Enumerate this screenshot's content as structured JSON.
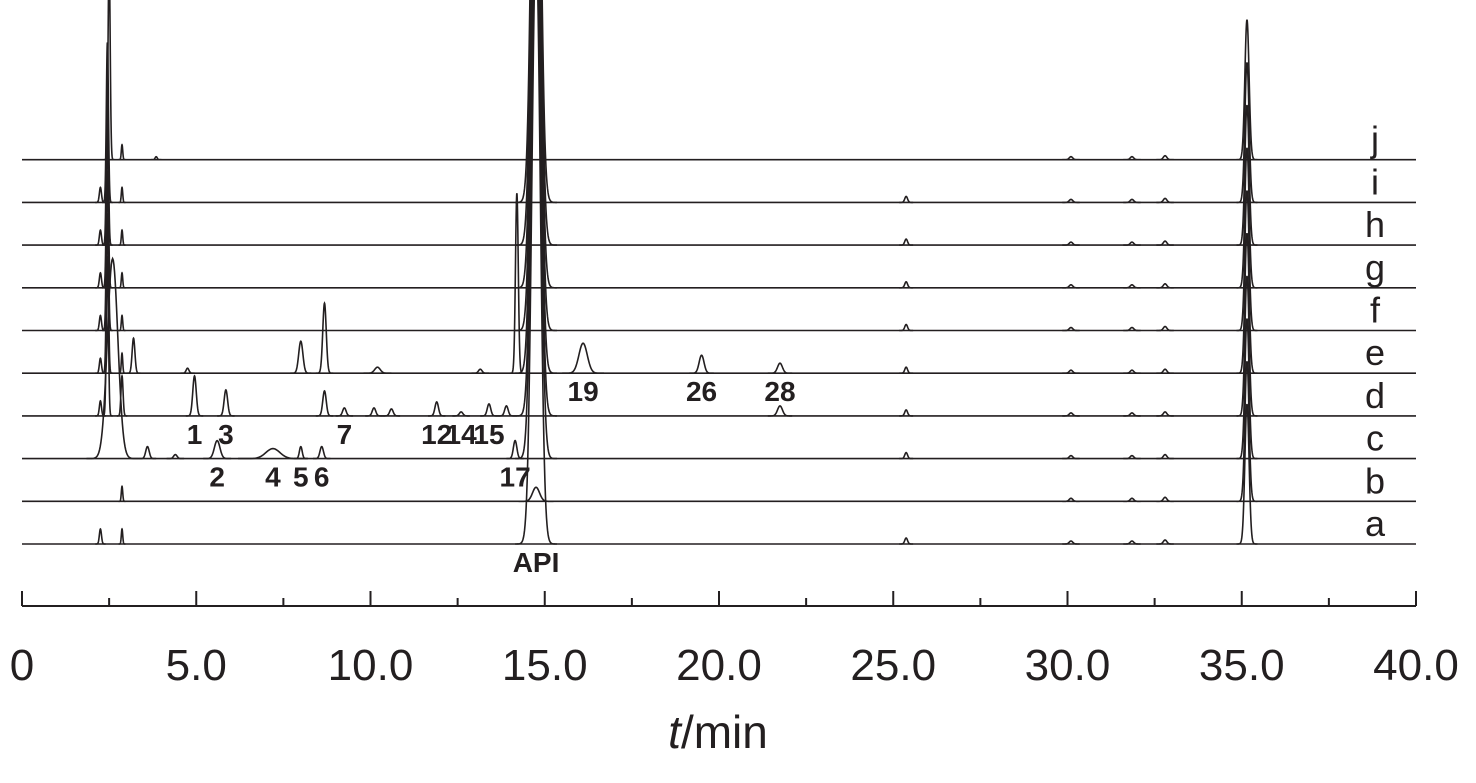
{
  "chart_data": {
    "type": "chromatogram",
    "xlabel_var": "t",
    "xlabel_unit": "/min",
    "xlim": [
      0,
      40
    ],
    "xticks": [
      0,
      {
        "value": 5,
        "label": "5.0"
      },
      {
        "value": 10,
        "label": "10.0"
      },
      {
        "value": 15,
        "label": "15.0"
      },
      {
        "value": 20,
        "label": "20.0"
      },
      {
        "value": 25,
        "label": "25.0"
      },
      {
        "value": 30,
        "label": "30.0"
      },
      {
        "value": 35,
        "label": "35.0"
      },
      {
        "value": 40,
        "label": "40.0"
      }
    ],
    "xminorticks": [
      2.5,
      7.5,
      12.5,
      17.5,
      22.5,
      27.5,
      32.5,
      37.5
    ],
    "color": "#231f20",
    "traces": [
      {
        "name": "a",
        "peaks": [
          {
            "t": 2.25,
            "h": 15,
            "w": 0.03
          },
          {
            "t": 2.87,
            "h": 15,
            "w": 0.02
          },
          {
            "t": 14.75,
            "h": 600,
            "w": 0.12,
            "label": "API"
          },
          {
            "t": 25.37,
            "h": 6,
            "w": 0.04
          },
          {
            "t": 30.1,
            "h": 3,
            "w": 0.05
          },
          {
            "t": 31.85,
            "h": 3,
            "w": 0.05
          },
          {
            "t": 32.8,
            "h": 4,
            "w": 0.05
          },
          {
            "t": 35.15,
            "h": 140,
            "w": 0.06
          }
        ]
      },
      {
        "name": "b",
        "peaks": [
          {
            "t": 2.87,
            "h": 15,
            "w": 0.02
          },
          {
            "t": 14.75,
            "h": 14,
            "w": 0.1
          },
          {
            "t": 30.1,
            "h": 3,
            "w": 0.05
          },
          {
            "t": 31.85,
            "h": 3,
            "w": 0.05
          },
          {
            "t": 32.8,
            "h": 4,
            "w": 0.05
          },
          {
            "t": 35.15,
            "h": 140,
            "w": 0.06
          }
        ]
      },
      {
        "name": "c",
        "peaks": [
          {
            "t": 2.6,
            "h": 200,
            "w": 0.15
          },
          {
            "t": 3.6,
            "h": 12,
            "w": 0.05
          },
          {
            "t": 4.4,
            "h": 4,
            "w": 0.05
          },
          {
            "t": 5.6,
            "h": 18,
            "w": 0.08,
            "label": "2"
          },
          {
            "t": 7.2,
            "h": 10,
            "w": 0.2,
            "label": "4"
          },
          {
            "t": 8.0,
            "h": 12,
            "w": 0.04,
            "label": "5"
          },
          {
            "t": 8.6,
            "h": 12,
            "w": 0.05,
            "label": "6"
          },
          {
            "t": 14.15,
            "h": 18,
            "w": 0.05,
            "label": "17"
          },
          {
            "t": 14.75,
            "h": 600,
            "w": 0.12
          },
          {
            "t": 25.37,
            "h": 6,
            "w": 0.04
          },
          {
            "t": 30.1,
            "h": 3,
            "w": 0.05
          },
          {
            "t": 31.85,
            "h": 3,
            "w": 0.05
          },
          {
            "t": 32.8,
            "h": 4,
            "w": 0.05
          },
          {
            "t": 35.15,
            "h": 140,
            "w": 0.06
          }
        ]
      },
      {
        "name": "d",
        "peaks": [
          {
            "t": 2.25,
            "h": 15,
            "w": 0.03
          },
          {
            "t": 2.45,
            "h": 160,
            "w": 0.03
          },
          {
            "t": 2.87,
            "h": 40,
            "w": 0.03
          },
          {
            "t": 4.95,
            "h": 40,
            "w": 0.05,
            "label": "1"
          },
          {
            "t": 5.85,
            "h": 26,
            "w": 0.05,
            "label": "3"
          },
          {
            "t": 8.68,
            "h": 25,
            "w": 0.05
          },
          {
            "t": 9.25,
            "h": 8,
            "w": 0.05,
            "label": "7"
          },
          {
            "t": 10.1,
            "h": 8,
            "w": 0.05
          },
          {
            "t": 10.6,
            "h": 7,
            "w": 0.05
          },
          {
            "t": 11.9,
            "h": 14,
            "w": 0.05,
            "label": "12"
          },
          {
            "t": 12.6,
            "h": 4,
            "w": 0.05,
            "label": "14"
          },
          {
            "t": 13.4,
            "h": 12,
            "w": 0.05,
            "label": "15"
          },
          {
            "t": 13.9,
            "h": 10,
            "w": 0.05
          },
          {
            "t": 14.75,
            "h": 600,
            "w": 0.12
          },
          {
            "t": 21.75,
            "h": 10,
            "w": 0.07
          },
          {
            "t": 25.37,
            "h": 6,
            "w": 0.04
          },
          {
            "t": 30.1,
            "h": 3,
            "w": 0.05
          },
          {
            "t": 31.85,
            "h": 3,
            "w": 0.05
          },
          {
            "t": 32.8,
            "h": 4,
            "w": 0.05
          },
          {
            "t": 35.15,
            "h": 140,
            "w": 0.06
          }
        ]
      },
      {
        "name": "e",
        "peaks": [
          {
            "t": 2.25,
            "h": 15,
            "w": 0.03
          },
          {
            "t": 2.45,
            "h": 160,
            "w": 0.03
          },
          {
            "t": 2.87,
            "h": 20,
            "w": 0.02
          },
          {
            "t": 3.2,
            "h": 35,
            "w": 0.04
          },
          {
            "t": 4.75,
            "h": 5,
            "w": 0.04
          },
          {
            "t": 8.0,
            "h": 32,
            "w": 0.06
          },
          {
            "t": 8.68,
            "h": 70,
            "w": 0.05
          },
          {
            "t": 10.2,
            "h": 6,
            "w": 0.08
          },
          {
            "t": 13.15,
            "h": 4,
            "w": 0.05
          },
          {
            "t": 14.2,
            "h": 180,
            "w": 0.04
          },
          {
            "t": 14.75,
            "h": 600,
            "w": 0.12
          },
          {
            "t": 16.1,
            "h": 30,
            "w": 0.12,
            "label": "19"
          },
          {
            "t": 19.5,
            "h": 18,
            "w": 0.07,
            "label": "26"
          },
          {
            "t": 21.75,
            "h": 10,
            "w": 0.07,
            "label": "28"
          },
          {
            "t": 25.37,
            "h": 6,
            "w": 0.04
          },
          {
            "t": 30.1,
            "h": 3,
            "w": 0.05
          },
          {
            "t": 31.85,
            "h": 3,
            "w": 0.05
          },
          {
            "t": 32.8,
            "h": 4,
            "w": 0.05
          },
          {
            "t": 35.15,
            "h": 140,
            "w": 0.06
          }
        ]
      },
      {
        "name": "f",
        "peaks": [
          {
            "t": 2.25,
            "h": 15,
            "w": 0.03
          },
          {
            "t": 2.45,
            "h": 160,
            "w": 0.03
          },
          {
            "t": 2.87,
            "h": 15,
            "w": 0.02
          },
          {
            "t": 14.75,
            "h": 600,
            "w": 0.12
          },
          {
            "t": 25.37,
            "h": 6,
            "w": 0.04
          },
          {
            "t": 30.1,
            "h": 3,
            "w": 0.05
          },
          {
            "t": 31.85,
            "h": 3,
            "w": 0.05
          },
          {
            "t": 32.8,
            "h": 4,
            "w": 0.05
          },
          {
            "t": 35.15,
            "h": 140,
            "w": 0.06
          }
        ]
      },
      {
        "name": "g",
        "peaks": [
          {
            "t": 2.25,
            "h": 15,
            "w": 0.03
          },
          {
            "t": 2.45,
            "h": 160,
            "w": 0.03
          },
          {
            "t": 2.87,
            "h": 15,
            "w": 0.02
          },
          {
            "t": 14.75,
            "h": 600,
            "w": 0.12
          },
          {
            "t": 25.37,
            "h": 6,
            "w": 0.04
          },
          {
            "t": 30.1,
            "h": 3,
            "w": 0.05
          },
          {
            "t": 31.85,
            "h": 3,
            "w": 0.05
          },
          {
            "t": 32.8,
            "h": 4,
            "w": 0.05
          },
          {
            "t": 35.15,
            "h": 140,
            "w": 0.06
          }
        ]
      },
      {
        "name": "h",
        "peaks": [
          {
            "t": 2.25,
            "h": 15,
            "w": 0.03
          },
          {
            "t": 2.45,
            "h": 160,
            "w": 0.03
          },
          {
            "t": 2.87,
            "h": 15,
            "w": 0.02
          },
          {
            "t": 14.75,
            "h": 600,
            "w": 0.12
          },
          {
            "t": 25.37,
            "h": 6,
            "w": 0.04
          },
          {
            "t": 30.1,
            "h": 3,
            "w": 0.05
          },
          {
            "t": 31.85,
            "h": 3,
            "w": 0.05
          },
          {
            "t": 32.8,
            "h": 4,
            "w": 0.05
          },
          {
            "t": 35.15,
            "h": 140,
            "w": 0.06
          }
        ]
      },
      {
        "name": "i",
        "peaks": [
          {
            "t": 2.25,
            "h": 15,
            "w": 0.03
          },
          {
            "t": 2.45,
            "h": 160,
            "w": 0.03
          },
          {
            "t": 2.87,
            "h": 15,
            "w": 0.02
          },
          {
            "t": 14.75,
            "h": 600,
            "w": 0.12
          },
          {
            "t": 25.37,
            "h": 6,
            "w": 0.04
          },
          {
            "t": 30.1,
            "h": 3,
            "w": 0.05
          },
          {
            "t": 31.85,
            "h": 3,
            "w": 0.05
          },
          {
            "t": 32.8,
            "h": 4,
            "w": 0.05
          },
          {
            "t": 35.15,
            "h": 140,
            "w": 0.06
          }
        ]
      },
      {
        "name": "j",
        "peaks": [
          {
            "t": 2.5,
            "h": 200,
            "w": 0.03
          },
          {
            "t": 2.87,
            "h": 15,
            "w": 0.02
          },
          {
            "t": 3.85,
            "h": 3,
            "w": 0.03
          },
          {
            "t": 30.1,
            "h": 3,
            "w": 0.05
          },
          {
            "t": 31.85,
            "h": 3,
            "w": 0.05
          },
          {
            "t": 32.8,
            "h": 4,
            "w": 0.05
          },
          {
            "t": 35.15,
            "h": 140,
            "w": 0.06
          }
        ]
      }
    ]
  }
}
